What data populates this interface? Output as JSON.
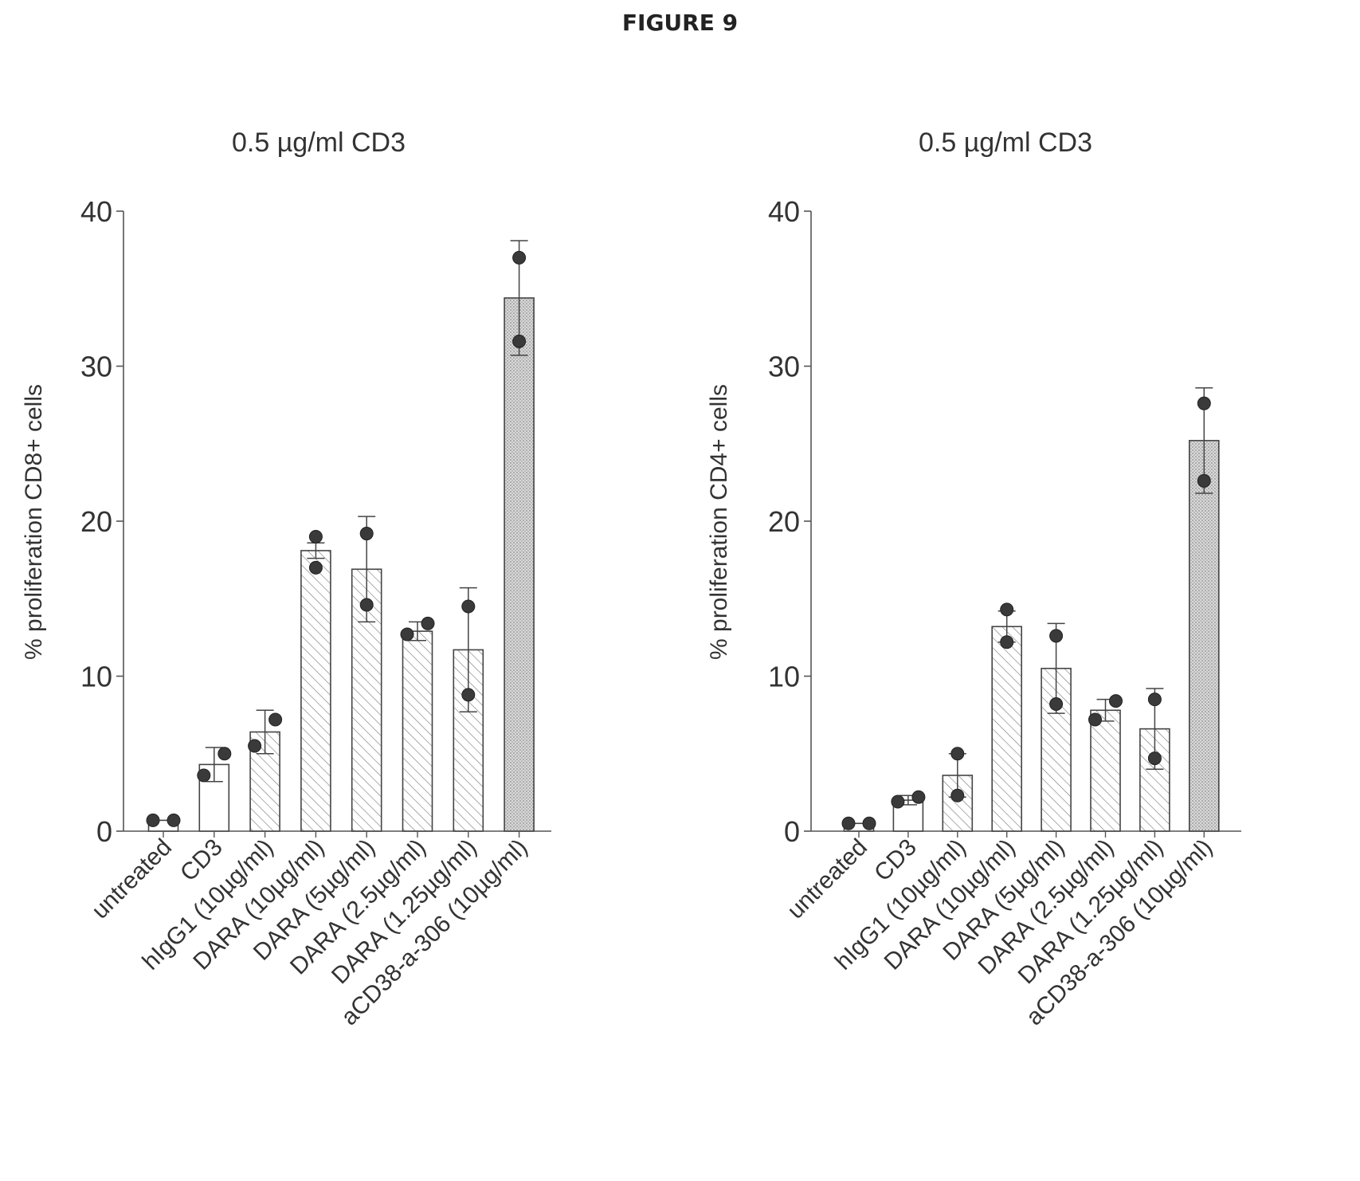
{
  "figure_title": "FIGURE 9",
  "chart_data": [
    {
      "type": "bar",
      "title": "0.5 µg/ml CD3",
      "ylabel": "% proliferation CD8+ cells",
      "xlabel": "",
      "ylim": [
        0,
        40
      ],
      "yticks": [
        "0",
        "10",
        "20",
        "30",
        "40"
      ],
      "categories": [
        "untreated",
        "CD3",
        "hIgG1 (10µg/ml)",
        "DARA (10µg/ml)",
        "DARA (5µg/ml)",
        "DARA (2.5µg/ml)",
        "DARA (1.25µg/ml)",
        "aCD38-a-306 (10µg/ml)"
      ],
      "values": [
        0.7,
        4.3,
        6.4,
        18.1,
        16.9,
        12.9,
        11.7,
        34.4
      ],
      "error": [
        0.1,
        1.1,
        1.4,
        0.5,
        3.4,
        0.6,
        4.0,
        3.7
      ],
      "points": [
        [
          0.7,
          0.7
        ],
        [
          3.6,
          5.0
        ],
        [
          5.5,
          7.2
        ],
        [
          17.0,
          19.0
        ],
        [
          14.6,
          19.2
        ],
        [
          12.7,
          13.4
        ],
        [
          8.8,
          14.5
        ],
        [
          31.6,
          37.0
        ]
      ],
      "patterns": [
        "none",
        "none",
        "hatch",
        "hatch",
        "hatch",
        "hatch",
        "hatch",
        "dots"
      ],
      "grid": false,
      "legend": "none"
    },
    {
      "type": "bar",
      "title": "0.5 µg/ml CD3",
      "ylabel": "% proliferation CD4+ cells",
      "xlabel": "",
      "ylim": [
        0,
        40
      ],
      "yticks": [
        "0",
        "10",
        "20",
        "30",
        "40"
      ],
      "categories": [
        "untreated",
        "CD3",
        "hIgG1 (10µg/ml)",
        "DARA (10µg/ml)",
        "DARA (5µg/ml)",
        "DARA (2.5µg/ml)",
        "DARA (1.25µg/ml)",
        "aCD38-a-306 (10µg/ml)"
      ],
      "values": [
        0.5,
        2.0,
        3.6,
        13.2,
        10.5,
        7.8,
        6.6,
        25.2
      ],
      "error": [
        0.05,
        0.3,
        1.4,
        1.0,
        2.9,
        0.7,
        2.6,
        3.4
      ],
      "points": [
        [
          0.5,
          0.5
        ],
        [
          1.9,
          2.2
        ],
        [
          2.3,
          5.0
        ],
        [
          12.2,
          14.3
        ],
        [
          8.2,
          12.6
        ],
        [
          7.2,
          8.4
        ],
        [
          4.7,
          8.5
        ],
        [
          22.6,
          27.6
        ]
      ],
      "patterns": [
        "none",
        "none",
        "hatch",
        "hatch",
        "hatch",
        "hatch",
        "hatch",
        "dots"
      ],
      "grid": false,
      "legend": "none"
    }
  ]
}
